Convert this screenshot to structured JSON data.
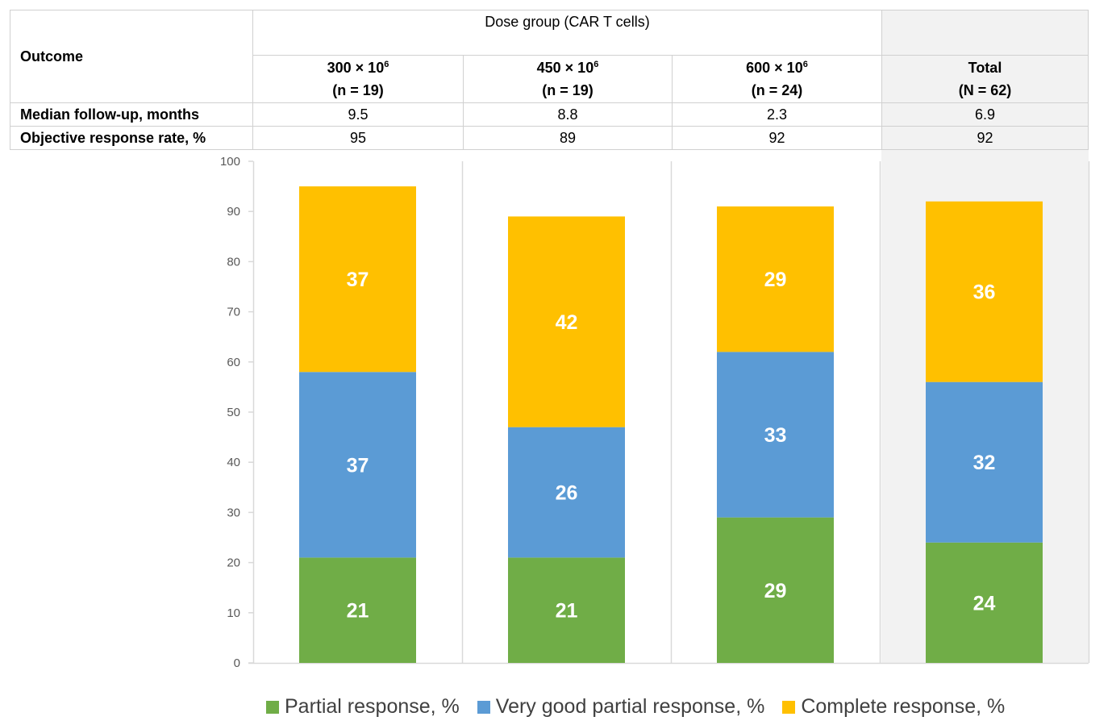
{
  "table": {
    "outcome_header": "Outcome",
    "group_header": "Dose group (CAR T cells)",
    "columns": [
      {
        "dose_base": "300 × 10",
        "dose_exp": "6",
        "n": "(n = 19)"
      },
      {
        "dose_base": "450 × 10",
        "dose_exp": "6",
        "n": "(n = 19)"
      },
      {
        "dose_base": "600 × 10",
        "dose_exp": "6",
        "n": "(n = 24)"
      }
    ],
    "total_column": {
      "label": "Total",
      "n": "(N = 62)"
    },
    "rows": [
      {
        "label": "Median follow-up, months",
        "values": [
          "9.5",
          "8.8",
          "2.3",
          "6.9"
        ]
      },
      {
        "label": "Objective response rate, %",
        "values": [
          "95",
          "89",
          "92",
          "92"
        ]
      }
    ]
  },
  "chart_data": {
    "type": "bar",
    "stacked": true,
    "title": "",
    "xlabel": "",
    "ylabel": "",
    "categories": [
      "300 × 10^6 (n = 19)",
      "450 × 10^6 (n = 19)",
      "600 × 10^6 (n = 24)",
      "Total (N = 62)"
    ],
    "series": [
      {
        "name": "Partial response, %",
        "color": "#70ad47",
        "values": [
          21,
          21,
          29,
          24
        ]
      },
      {
        "name": "Very good partial response, %",
        "color": "#5b9bd5",
        "values": [
          37,
          26,
          33,
          32
        ]
      },
      {
        "name": "Complete response, %",
        "color": "#ffc000",
        "values": [
          37,
          42,
          29,
          36
        ]
      }
    ],
    "ylim": [
      0,
      100
    ],
    "yticks": [
      0,
      10,
      20,
      30,
      40,
      50,
      60,
      70,
      80,
      90,
      100
    ],
    "grid": false,
    "legend_position": "bottom",
    "data_labels": true
  }
}
